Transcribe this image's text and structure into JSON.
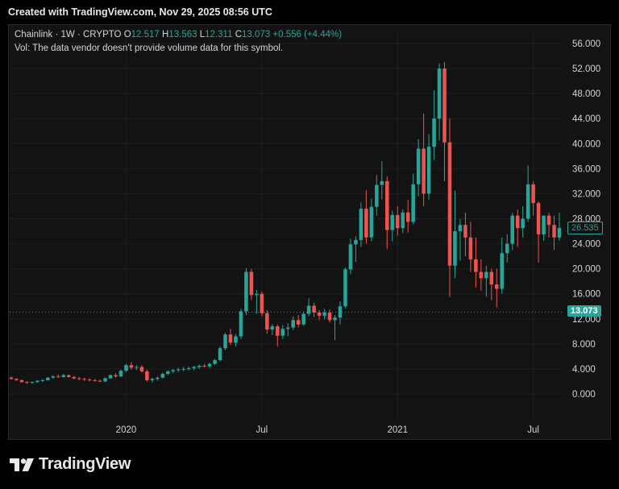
{
  "caption": "Created with TradingView.com, Nov 29, 2025 08:56 UTC",
  "legend": {
    "symbol": "Chainlink · 1W · CRYPTO",
    "o_label": "O",
    "o": "12.517",
    "h_label": "H",
    "h": "13.563",
    "l_label": "L",
    "l": "12.311",
    "c_label": "C",
    "c": "13.073",
    "change": "+0.556 (+4.44%)"
  },
  "vol_text": "Vol: The data vendor doesn't provide volume data for this symbol.",
  "footer_brand": "TradingView",
  "colors": {
    "up": "#26a69a",
    "down": "#ef5350",
    "background": "#131313",
    "grid": "#1f1f1f"
  },
  "chart_data": {
    "type": "candlestick",
    "interval": "1W",
    "y_ticks": [
      "56.000",
      "52.000",
      "48.000",
      "44.000",
      "40.000",
      "36.000",
      "32.000",
      "28.000",
      "24.000",
      "20.000",
      "16.000",
      "12.000",
      "8.000",
      "4.000",
      "0.000"
    ],
    "x_labels": [
      "2020",
      "Jul",
      "2021",
      "Jul"
    ],
    "ylim": [
      -4,
      58
    ],
    "last_price": "13.073",
    "current_price": "26.535",
    "candles": [
      [
        2.6,
        2.8,
        2.3,
        2.4
      ],
      [
        2.4,
        2.5,
        2.1,
        2.2
      ],
      [
        2.2,
        2.3,
        1.8,
        1.9
      ],
      [
        1.9,
        2.0,
        1.6,
        1.8
      ],
      [
        1.8,
        2.0,
        1.6,
        1.9
      ],
      [
        1.9,
        2.2,
        1.8,
        2.1
      ],
      [
        2.1,
        2.4,
        1.9,
        2.2
      ],
      [
        2.2,
        2.7,
        2.1,
        2.6
      ],
      [
        2.6,
        3.0,
        2.4,
        2.8
      ],
      [
        2.8,
        3.1,
        2.6,
        2.7
      ],
      [
        2.7,
        3.2,
        2.6,
        3.0
      ],
      [
        3.0,
        3.1,
        2.6,
        2.7
      ],
      [
        2.7,
        2.9,
        2.3,
        2.5
      ],
      [
        2.5,
        2.7,
        2.2,
        2.4
      ],
      [
        2.4,
        2.6,
        2.1,
        2.3
      ],
      [
        2.3,
        2.5,
        2.0,
        2.2
      ],
      [
        2.2,
        2.4,
        2.0,
        2.1
      ],
      [
        2.1,
        2.3,
        1.9,
        2.0
      ],
      [
        2.0,
        2.6,
        1.9,
        2.5
      ],
      [
        2.5,
        3.1,
        2.4,
        3.0
      ],
      [
        3.0,
        3.3,
        2.6,
        2.8
      ],
      [
        2.8,
        3.9,
        2.7,
        3.7
      ],
      [
        3.7,
        4.8,
        3.5,
        4.6
      ],
      [
        4.6,
        5.1,
        3.9,
        4.2
      ],
      [
        4.2,
        4.6,
        3.8,
        4.3
      ],
      [
        4.3,
        4.6,
        3.4,
        3.6
      ],
      [
        3.6,
        3.9,
        2.0,
        2.2
      ],
      [
        2.2,
        2.6,
        1.8,
        2.4
      ],
      [
        2.4,
        2.8,
        2.1,
        2.6
      ],
      [
        2.6,
        3.4,
        2.5,
        3.2
      ],
      [
        3.2,
        3.8,
        3.0,
        3.6
      ],
      [
        3.6,
        4.0,
        3.3,
        3.8
      ],
      [
        3.8,
        4.2,
        3.5,
        3.9
      ],
      [
        3.9,
        4.3,
        3.6,
        4.0
      ],
      [
        4.0,
        4.4,
        3.7,
        4.1
      ],
      [
        4.1,
        4.5,
        3.8,
        4.3
      ],
      [
        4.3,
        4.7,
        4.0,
        4.5
      ],
      [
        4.5,
        4.8,
        4.2,
        4.4
      ],
      [
        4.4,
        5.0,
        4.2,
        4.8
      ],
      [
        4.8,
        5.6,
        4.6,
        5.4
      ],
      [
        5.4,
        7.6,
        5.2,
        7.3
      ],
      [
        7.3,
        9.8,
        7.0,
        9.5
      ],
      [
        9.5,
        10.4,
        7.8,
        8.2
      ],
      [
        8.2,
        9.6,
        7.6,
        9.2
      ],
      [
        9.2,
        13.6,
        8.8,
        13.2
      ],
      [
        13.2,
        20.1,
        12.6,
        19.5
      ],
      [
        19.5,
        20.0,
        15.0,
        15.8
      ],
      [
        15.8,
        16.6,
        12.8,
        16.0
      ],
      [
        16.0,
        16.4,
        12.4,
        12.9
      ],
      [
        12.9,
        13.4,
        9.6,
        10.3
      ],
      [
        10.3,
        11.2,
        9.4,
        10.8
      ],
      [
        10.8,
        11.1,
        7.6,
        9.3
      ],
      [
        9.3,
        11.0,
        8.8,
        10.4
      ],
      [
        10.4,
        11.3,
        9.2,
        10.6
      ],
      [
        10.6,
        12.4,
        10.2,
        11.8
      ],
      [
        11.8,
        12.6,
        10.6,
        11.1
      ],
      [
        11.1,
        13.2,
        10.9,
        12.8
      ],
      [
        12.8,
        15.3,
        12.4,
        14.1
      ],
      [
        14.1,
        14.6,
        12.3,
        13.0
      ],
      [
        13.0,
        13.4,
        11.8,
        12.5
      ],
      [
        12.5,
        13.6,
        11.9,
        13.0
      ],
      [
        13.0,
        13.5,
        11.4,
        11.8
      ],
      [
        11.8,
        12.6,
        8.6,
        12.2
      ],
      [
        12.2,
        14.8,
        11.1,
        14.0
      ],
      [
        14.0,
        20.2,
        13.7,
        19.9
      ],
      [
        19.9,
        24.8,
        19.1,
        23.9
      ],
      [
        23.9,
        25.2,
        21.1,
        24.6
      ],
      [
        24.6,
        30.6,
        23.5,
        29.6
      ],
      [
        29.6,
        32.6,
        24.0,
        25.0
      ],
      [
        25.0,
        31.2,
        24.4,
        29.9
      ],
      [
        29.9,
        35.0,
        28.5,
        33.4
      ],
      [
        33.4,
        37.2,
        31.1,
        34.0
      ],
      [
        34.0,
        34.8,
        23.2,
        26.2
      ],
      [
        26.2,
        29.3,
        24.4,
        28.6
      ],
      [
        28.6,
        30.0,
        25.3,
        26.5
      ],
      [
        26.5,
        29.5,
        25.7,
        29.0
      ],
      [
        29.0,
        31.0,
        25.8,
        27.5
      ],
      [
        27.5,
        35.2,
        27.1,
        33.5
      ],
      [
        33.5,
        40.7,
        31.6,
        39.2
      ],
      [
        39.2,
        44.8,
        30.0,
        32.0
      ],
      [
        32.0,
        41.5,
        31.0,
        39.5
      ],
      [
        39.5,
        48.5,
        37.4,
        44.0
      ],
      [
        44.0,
        52.8,
        40.5,
        52.0
      ],
      [
        52.0,
        53.0,
        34.0,
        40.2
      ],
      [
        40.2,
        44.0,
        15.5,
        20.5
      ],
      [
        20.5,
        32.5,
        18.5,
        26.0
      ],
      [
        26.0,
        28.0,
        21.3,
        27.0
      ],
      [
        27.0,
        29.0,
        22.0,
        25.0
      ],
      [
        25.0,
        27.5,
        19.5,
        21.5
      ],
      [
        21.5,
        25.0,
        17.0,
        19.5
      ],
      [
        19.5,
        21.5,
        16.5,
        18.5
      ],
      [
        18.5,
        20.5,
        15.5,
        19.5
      ],
      [
        19.5,
        20.0,
        15.0,
        17.5
      ],
      [
        17.5,
        20.0,
        13.8,
        16.8
      ],
      [
        16.8,
        25.0,
        16.0,
        22.5
      ],
      [
        22.5,
        25.5,
        21.0,
        24.0
      ],
      [
        24.0,
        29.0,
        23.0,
        28.5
      ],
      [
        28.5,
        29.5,
        23.5,
        26.5
      ],
      [
        26.5,
        30.0,
        25.0,
        28.0
      ],
      [
        28.0,
        36.5,
        27.5,
        33.5
      ],
      [
        33.5,
        34.0,
        28.5,
        30.5
      ],
      [
        30.5,
        30.8,
        21.0,
        25.5
      ],
      [
        25.5,
        28.5,
        24.5,
        28.5
      ],
      [
        28.5,
        29.0,
        25.0,
        27.0
      ],
      [
        27.0,
        28.5,
        23.0,
        25.0
      ],
      [
        25.0,
        29.0,
        24.5,
        26.535
      ]
    ]
  }
}
